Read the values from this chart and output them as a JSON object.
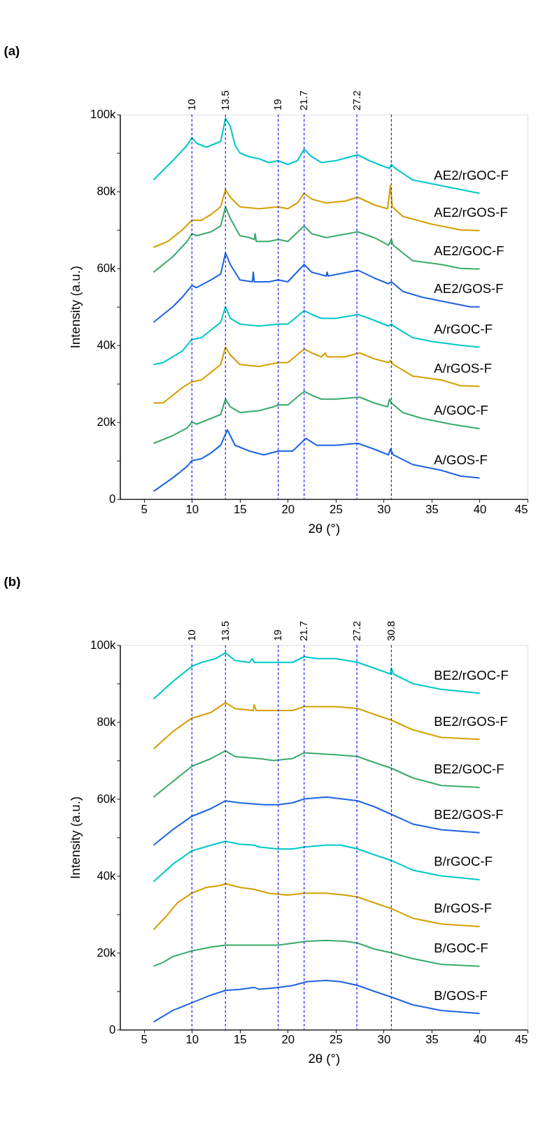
{
  "chart_data": [
    {
      "type": "line",
      "title": "(a)",
      "xlabel": "2θ (°)",
      "ylabel": "Intensity (a.u.)",
      "xlim": [
        2.5,
        45
      ],
      "xticks": [
        5,
        10,
        15,
        20,
        25,
        30,
        35,
        40,
        45
      ],
      "ylim": [
        0,
        100000
      ],
      "yticks": [
        0,
        {
          "value": 10000,
          "label": null
        },
        {
          "value": 20000,
          "label": "20k"
        },
        {
          "value": 30000,
          "label": null
        },
        {
          "value": 40000,
          "label": "40k"
        },
        {
          "value": 50000,
          "label": null
        },
        {
          "value": 60000,
          "label": "60k"
        },
        {
          "value": 70000,
          "label": null
        },
        {
          "value": 80000,
          "label": "80k"
        },
        {
          "value": 90000,
          "label": null
        },
        {
          "value": 100000,
          "label": "100k"
        }
      ],
      "grid": false,
      "marker": "none",
      "line_style": "solid",
      "ref_lines": [
        {
          "axis": "x",
          "value": 10,
          "label": "10",
          "color": "#2020ff",
          "line_style": "dashed"
        },
        {
          "axis": "x",
          "value": 13.5,
          "label": "13.5",
          "color": "#2020ff",
          "line_style": "dashed"
        },
        {
          "axis": "x",
          "value": 19,
          "label": "19",
          "color": "#2020ff",
          "line_style": "dashed"
        },
        {
          "axis": "x",
          "value": 21.7,
          "label": "21.7",
          "color": "#2020ff",
          "line_style": "dashed"
        },
        {
          "axis": "x",
          "value": 27.2,
          "label": "27.2",
          "color": "#2020ff",
          "line_style": "dashed"
        },
        {
          "axis": "x",
          "value": 30.8,
          "label": null,
          "color": "#2020ff",
          "line_style": "dashed"
        }
      ],
      "series": [
        {
          "name": "AE2/rGOC-F",
          "color": "#00c8c8",
          "x": [
            6,
            8,
            9.5,
            10,
            10.5,
            11.5,
            12.5,
            13,
            13.5,
            14,
            14.5,
            15,
            16,
            17,
            18,
            19,
            20,
            21,
            21.7,
            22.5,
            23.5,
            25,
            26.5,
            27.3,
            28.5,
            30,
            30.6,
            30.8,
            31.2,
            33,
            35,
            37,
            40
          ],
          "values": [
            83000,
            88000,
            92000,
            94000,
            92500,
            91500,
            92500,
            93000,
            99000,
            97000,
            92000,
            90000,
            89000,
            88500,
            87500,
            88000,
            87000,
            88000,
            91000,
            89000,
            87500,
            88000,
            89000,
            89500,
            88000,
            86500,
            86000,
            87000,
            86000,
            83000,
            82000,
            81000,
            79500
          ]
        },
        {
          "name": "AE2/rGOS-F",
          "color": "#d4a000",
          "x": [
            6,
            7.5,
            9,
            10,
            11,
            12,
            13,
            13.5,
            14,
            15,
            17,
            19,
            20,
            21,
            21.7,
            22.5,
            24,
            26,
            27.3,
            29,
            30.4,
            30.7,
            30.9,
            32,
            35,
            38,
            40
          ],
          "values": [
            65500,
            67000,
            70000,
            72500,
            72500,
            74000,
            76000,
            80500,
            78500,
            76000,
            75500,
            76000,
            75500,
            77000,
            79500,
            78000,
            77000,
            77500,
            78500,
            76500,
            75500,
            81500,
            76000,
            73500,
            71500,
            70000,
            69800
          ]
        },
        {
          "name": "AE2/GOC-F",
          "color": "#3aaa6a",
          "x": [
            6,
            8,
            9.5,
            10,
            10.5,
            12,
            13,
            13.5,
            14,
            15,
            16,
            16.5,
            16.6,
            16.7,
            18,
            19,
            20,
            21.7,
            22.5,
            24,
            27.3,
            29,
            30.5,
            30.8,
            31,
            33,
            36,
            38,
            40
          ],
          "values": [
            59000,
            63000,
            67000,
            69000,
            68500,
            69500,
            71000,
            76000,
            73000,
            68500,
            68000,
            67500,
            69000,
            67000,
            67000,
            67500,
            67000,
            71000,
            69000,
            68000,
            69500,
            68000,
            66000,
            67500,
            66000,
            62000,
            61000,
            60000,
            59800
          ]
        },
        {
          "name": "AE2/GOS-F",
          "color": "#1f64e0",
          "x": [
            6,
            8,
            9,
            10,
            10.5,
            12,
            13,
            13.5,
            14,
            15,
            16.3,
            16.4,
            16.5,
            18,
            19,
            20,
            21.7,
            22.5,
            24,
            24.1,
            24.2,
            27.3,
            29,
            30.5,
            30.8,
            32,
            34,
            37,
            39,
            40
          ],
          "values": [
            46000,
            50000,
            52500,
            55500,
            55000,
            57000,
            58500,
            64000,
            61000,
            57000,
            56500,
            59000,
            56500,
            56500,
            57000,
            56500,
            61000,
            59000,
            58000,
            59000,
            58000,
            59500,
            57500,
            56000,
            56500,
            54000,
            52500,
            51000,
            50000,
            50000
          ]
        },
        {
          "name": "A/rGOC-F",
          "color": "#00c8c8",
          "x": [
            6,
            7,
            9,
            10,
            11,
            12,
            13,
            13.5,
            14,
            15,
            17,
            19,
            20,
            21.7,
            22.5,
            23.5,
            25,
            27.3,
            28.5,
            30.5,
            30.8,
            31,
            33,
            35,
            38,
            40
          ],
          "values": [
            35000,
            35500,
            38500,
            41500,
            42000,
            44000,
            46000,
            50000,
            47000,
            45500,
            45000,
            45500,
            45500,
            49000,
            48000,
            47000,
            47000,
            48000,
            47000,
            45000,
            45500,
            45000,
            42000,
            41000,
            40000,
            39500
          ]
        },
        {
          "name": "A/rGOS-F",
          "color": "#d4a000",
          "x": [
            6,
            7,
            8,
            9,
            10,
            11,
            12,
            13,
            13.5,
            14,
            15,
            17,
            19,
            20,
            21.7,
            22.5,
            23.5,
            23.9,
            24.1,
            26,
            27.5,
            29,
            30.5,
            30.7,
            31,
            33,
            36,
            38,
            40
          ],
          "values": [
            25000,
            25000,
            27000,
            29000,
            30500,
            31000,
            33000,
            35000,
            39500,
            37500,
            35000,
            34500,
            35500,
            35500,
            39000,
            38000,
            37000,
            38000,
            37000,
            37000,
            38000,
            36500,
            35500,
            36000,
            35000,
            32000,
            31000,
            29500,
            29300
          ]
        },
        {
          "name": "A/GOC-F",
          "color": "#3aaa6a",
          "x": [
            6,
            8,
            9.5,
            10,
            10.5,
            11.5,
            13,
            13.5,
            14,
            15,
            17,
            18.5,
            19,
            20,
            21.7,
            22.5,
            23.5,
            25,
            27.5,
            29,
            30.4,
            30.6,
            30.8,
            32,
            34,
            37,
            40
          ],
          "values": [
            14500,
            16500,
            18500,
            20000,
            19500,
            20500,
            22000,
            26000,
            24000,
            22500,
            23000,
            24000,
            24500,
            24500,
            28000,
            27000,
            26000,
            26000,
            26500,
            25000,
            24000,
            26000,
            25000,
            22500,
            21000,
            19500,
            18300
          ]
        },
        {
          "name": "A/GOS-F",
          "color": "#1f64e0",
          "x": [
            6,
            8,
            9.5,
            10,
            11,
            12,
            13,
            13.7,
            14.5,
            16,
            17.5,
            19,
            20.5,
            21.9,
            23,
            25,
            27.3,
            29,
            30.5,
            30.7,
            31,
            33,
            36,
            38,
            40
          ],
          "values": [
            2000,
            5500,
            8500,
            10000,
            10500,
            12000,
            14000,
            18000,
            14000,
            12500,
            11500,
            12500,
            12500,
            15800,
            14000,
            14000,
            14500,
            13000,
            11500,
            13000,
            11500,
            9000,
            7500,
            6000,
            5500
          ]
        }
      ]
    },
    {
      "type": "line",
      "title": "(b)",
      "xlabel": "2θ (°)",
      "ylabel": "Intensity (a.u.)",
      "xlim": [
        2.5,
        45
      ],
      "xticks": [
        5,
        10,
        15,
        20,
        25,
        30,
        35,
        40,
        45
      ],
      "ylim": [
        0,
        100000
      ],
      "yticks": [
        0,
        {
          "value": 10000,
          "label": null
        },
        {
          "value": 20000,
          "label": "20k"
        },
        {
          "value": 30000,
          "label": null
        },
        {
          "value": 40000,
          "label": "40k"
        },
        {
          "value": 50000,
          "label": null
        },
        {
          "value": 60000,
          "label": "60k"
        },
        {
          "value": 70000,
          "label": null
        },
        {
          "value": 80000,
          "label": "80k"
        },
        {
          "value": 90000,
          "label": null
        },
        {
          "value": 100000,
          "label": "100k"
        }
      ],
      "grid": false,
      "marker": "none",
      "line_style": "solid",
      "ref_lines": [
        {
          "axis": "x",
          "value": 10,
          "label": "10",
          "color": "#2020ff",
          "line_style": "dashed"
        },
        {
          "axis": "x",
          "value": 13.5,
          "label": "13.5",
          "color": "#2020ff",
          "line_style": "dashed"
        },
        {
          "axis": "x",
          "value": 19,
          "label": "19",
          "color": "#2020ff",
          "line_style": "dashed"
        },
        {
          "axis": "x",
          "value": 21.7,
          "label": "21.7",
          "color": "#2020ff",
          "line_style": "dashed"
        },
        {
          "axis": "x",
          "value": 27.2,
          "label": "27.2",
          "color": "#2020ff",
          "line_style": "dashed"
        },
        {
          "axis": "x",
          "value": 30.8,
          "label": "30.8",
          "color": "#2020ff",
          "line_style": "dashed"
        }
      ],
      "series": [
        {
          "name": "BE2/rGOC-F",
          "color": "#00c8c8",
          "x": [
            6,
            8,
            10,
            11,
            12.5,
            13.5,
            14.5,
            16,
            16.3,
            16.5,
            18,
            19,
            20.5,
            21.7,
            23,
            25,
            27.3,
            29,
            30.7,
            30.8,
            31,
            33,
            36,
            38,
            40
          ],
          "values": [
            86000,
            90500,
            94500,
            95500,
            96500,
            98000,
            96000,
            95500,
            96500,
            95500,
            95500,
            95500,
            95500,
            97000,
            96500,
            96500,
            95500,
            94000,
            92500,
            94000,
            92500,
            90000,
            88500,
            88000,
            87500
          ]
        },
        {
          "name": "BE2/rGOS-F",
          "color": "#d4a000",
          "x": [
            6,
            8,
            10,
            12,
            13.5,
            14.5,
            16.4,
            16.5,
            16.7,
            19,
            20.5,
            21.7,
            25,
            27.3,
            29,
            30.8,
            33,
            36,
            40
          ],
          "values": [
            73000,
            77500,
            81000,
            82500,
            85000,
            83500,
            83000,
            84500,
            83000,
            83000,
            83000,
            84000,
            84000,
            83500,
            82000,
            80500,
            78000,
            76000,
            75500
          ]
        },
        {
          "name": "BE2/GOC-F",
          "color": "#3aaa6a",
          "x": [
            6,
            8,
            10,
            12,
            13.5,
            14.5,
            17,
            18.5,
            20.5,
            21.7,
            25,
            27.3,
            29,
            30.8,
            33,
            36,
            40
          ],
          "values": [
            60500,
            64500,
            68500,
            70500,
            72500,
            71000,
            70500,
            70000,
            70500,
            72000,
            71500,
            71000,
            69500,
            68000,
            65500,
            63500,
            63000
          ]
        },
        {
          "name": "BE2/GOS-F",
          "color": "#1f64e0",
          "x": [
            6,
            8,
            10,
            12,
            13.5,
            15,
            17.5,
            19,
            20.5,
            21.7,
            24,
            27.3,
            29,
            30.8,
            33,
            36,
            40
          ],
          "values": [
            48000,
            52000,
            55500,
            57500,
            59500,
            59000,
            58500,
            58500,
            59000,
            60000,
            60500,
            59500,
            58000,
            56000,
            53500,
            52000,
            51200
          ]
        },
        {
          "name": "B/rGOC-F",
          "color": "#00c8c8",
          "x": [
            6,
            8,
            10,
            12,
            13.5,
            15,
            16.5,
            17,
            19,
            20.5,
            21.7,
            24,
            25.5,
            27.3,
            29,
            30.8,
            33,
            36,
            40
          ],
          "values": [
            38500,
            43000,
            46500,
            48000,
            49000,
            48200,
            48000,
            47500,
            47000,
            47000,
            47500,
            48000,
            48000,
            47000,
            45500,
            44000,
            41500,
            40000,
            39000
          ]
        },
        {
          "name": "B/rGOS-F",
          "color": "#d4a000",
          "x": [
            6,
            7.5,
            8.5,
            10,
            11.5,
            13,
            13.5,
            15,
            16.5,
            18,
            20,
            21.7,
            24,
            26,
            27.3,
            29,
            30.8,
            33,
            36,
            40
          ],
          "values": [
            26000,
            30000,
            33000,
            35500,
            37000,
            37500,
            38000,
            37000,
            36500,
            35500,
            35000,
            35500,
            35500,
            35000,
            34500,
            33000,
            31500,
            29000,
            27500,
            26800
          ]
        },
        {
          "name": "B/GOC-F",
          "color": "#3aaa6a",
          "x": [
            6,
            7,
            8,
            10,
            12,
            13.5,
            15,
            17,
            19,
            20.5,
            22,
            24,
            26,
            27.3,
            29,
            30.8,
            33,
            36,
            40
          ],
          "values": [
            16500,
            17500,
            19000,
            20500,
            21500,
            22000,
            22000,
            22000,
            22000,
            22500,
            23000,
            23200,
            23000,
            22500,
            21000,
            20000,
            18500,
            17000,
            16500
          ]
        },
        {
          "name": "B/GOS-F",
          "color": "#1f64e0",
          "x": [
            6,
            7,
            8,
            10,
            12,
            13.5,
            15,
            16.5,
            17,
            19,
            20.5,
            22,
            24,
            25.5,
            27.3,
            29,
            30.8,
            33,
            36,
            40
          ],
          "values": [
            2000,
            3500,
            5000,
            7000,
            9000,
            10200,
            10500,
            11000,
            10500,
            11000,
            11500,
            12500,
            12800,
            12500,
            11500,
            10000,
            8500,
            6500,
            5000,
            4200
          ]
        }
      ]
    }
  ]
}
